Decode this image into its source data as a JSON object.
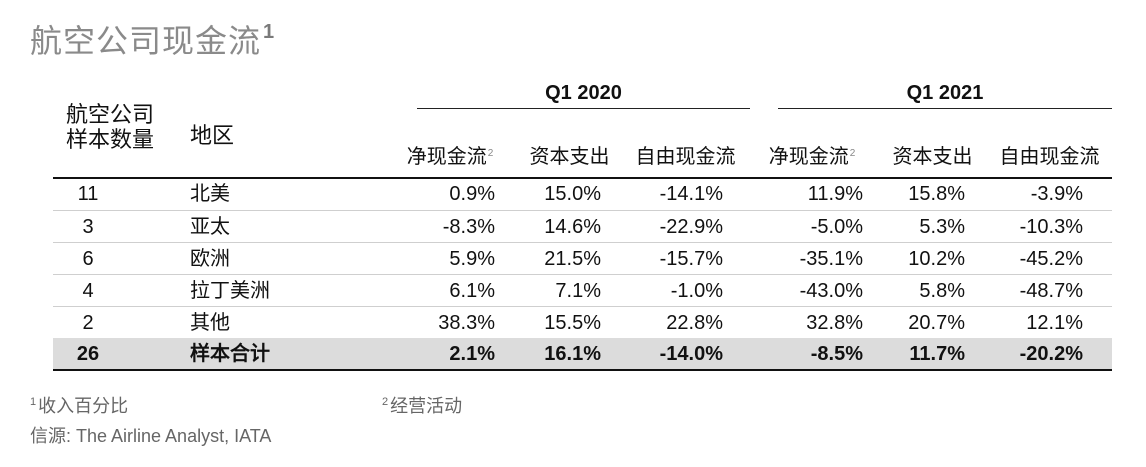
{
  "title": {
    "text": "航空公司现金流",
    "sup": "1"
  },
  "header": {
    "count_label_line1": "航空公司",
    "count_label_line2": "样本数量",
    "region_label": "地区",
    "periods": [
      "Q1 2020",
      "Q1 2021"
    ],
    "columns": [
      {
        "label": "净现金流",
        "sup": "2"
      },
      {
        "label": "资本支出",
        "sup": ""
      },
      {
        "label": "自由现金流",
        "sup": ""
      },
      {
        "label": "净现金流",
        "sup": "2"
      },
      {
        "label": "资本支出",
        "sup": ""
      },
      {
        "label": "自由现金流",
        "sup": ""
      }
    ]
  },
  "rows": [
    {
      "count": "11",
      "region": "北美",
      "values": [
        "0.9%",
        "15.0%",
        "-14.1%",
        "11.9%",
        "15.8%",
        "-3.9%"
      ]
    },
    {
      "count": "3",
      "region": "亚太",
      "values": [
        "-8.3%",
        "14.6%",
        "-22.9%",
        "-5.0%",
        "5.3%",
        "-10.3%"
      ]
    },
    {
      "count": "6",
      "region": "欧洲",
      "values": [
        "5.9%",
        "21.5%",
        "-15.7%",
        "-35.1%",
        "10.2%",
        "-45.2%"
      ]
    },
    {
      "count": "4",
      "region": "拉丁美洲",
      "values": [
        "6.1%",
        "7.1%",
        "-1.0%",
        "-43.0%",
        "5.8%",
        "-48.7%"
      ]
    },
    {
      "count": "2",
      "region": "其他",
      "values": [
        "38.3%",
        "15.5%",
        "22.8%",
        "32.8%",
        "20.7%",
        "12.1%"
      ]
    }
  ],
  "total": {
    "count": "26",
    "region": "样本合计",
    "values": [
      "2.1%",
      "16.1%",
      "-14.0%",
      "-8.5%",
      "11.7%",
      "-20.2%"
    ]
  },
  "footnotes": {
    "fn1_sup": "1",
    "fn1_text": "收入百分比",
    "fn2_sup": "2",
    "fn2_text": "经营活动",
    "source": "信源: The Airline Analyst, IATA"
  }
}
